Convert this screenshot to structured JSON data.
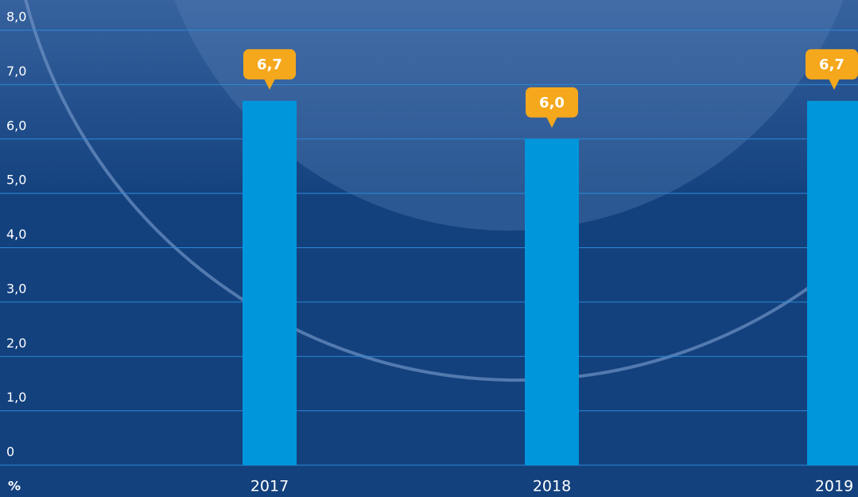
{
  "chart_data": {
    "type": "bar",
    "y_axis_label": "%",
    "categories": [
      "2017",
      "2018",
      "2019"
    ],
    "values": [
      6.7,
      6.0,
      6.7
    ],
    "value_labels": [
      "6,7",
      "6,0",
      "6,7"
    ],
    "color": "#0096dc",
    "label_color": "#f5a81c",
    "ylim": [
      0,
      8
    ],
    "yticks": [
      0,
      {
        "value": 1,
        "label": "1,0"
      },
      {
        "value": 2,
        "label": "2,0"
      },
      {
        "value": 3,
        "label": "3,0"
      },
      {
        "value": 4,
        "label": "4,0"
      },
      {
        "value": 5,
        "label": "5,0"
      },
      {
        "value": 6,
        "label": "6,0"
      },
      {
        "value": 7,
        "label": "7,0"
      },
      {
        "value": 8,
        "label": "8,0"
      }
    ],
    "grid": true
  }
}
